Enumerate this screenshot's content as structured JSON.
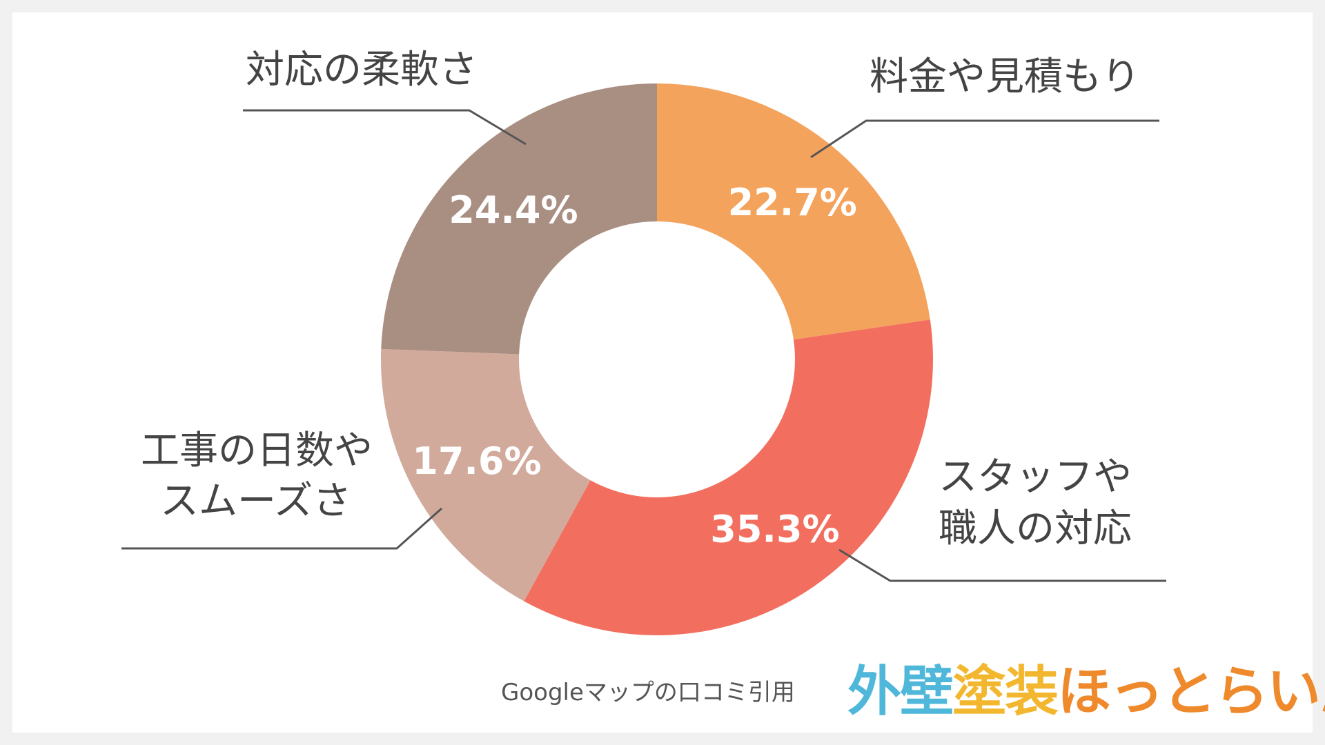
{
  "chart_data": {
    "type": "pie",
    "donut": true,
    "categories": [
      "料金や見積もり",
      "スタッフや\n職人の対応",
      "工事の日数や\nスムーズさ",
      "対応の柔軟さ"
    ],
    "values": [
      22.7,
      35.3,
      17.6,
      24.4
    ],
    "value_labels": [
      "22.7%",
      "35.3%",
      "17.6%",
      "24.4%"
    ],
    "colors": [
      "#f4a35d",
      "#f26f5f",
      "#d1aa9b",
      "#a98e82"
    ]
  },
  "source": "Googleマップの口コミ引用",
  "logo": {
    "part1": "外壁",
    "part2": "塗装",
    "part3": "ほっとらいん"
  }
}
